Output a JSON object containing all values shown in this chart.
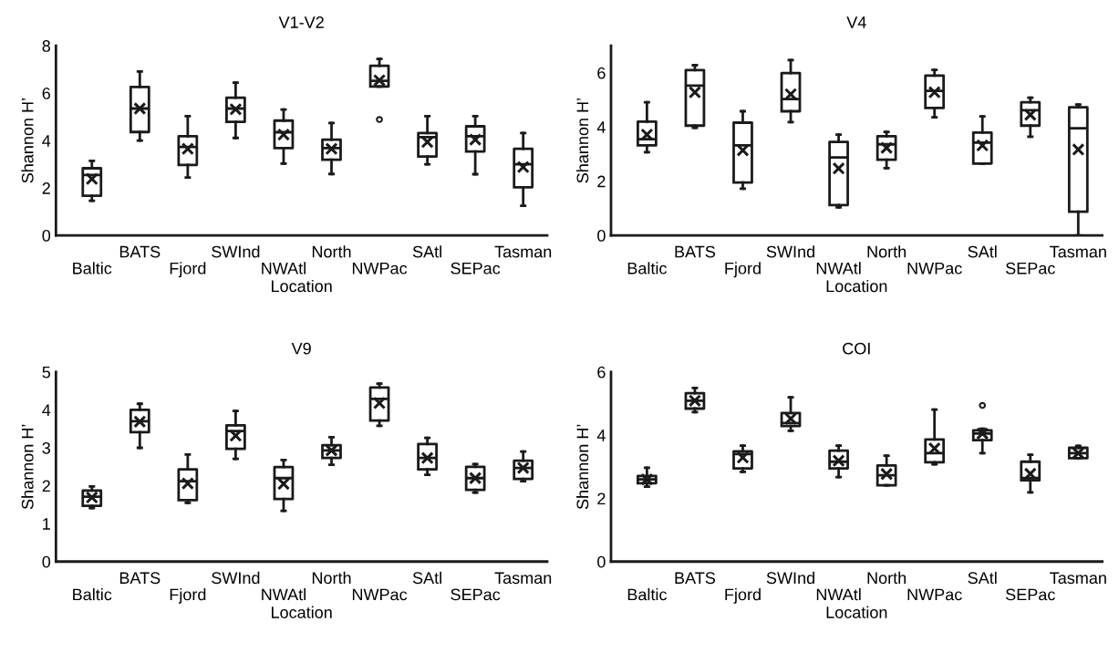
{
  "chart_data": [
    {
      "type": "box",
      "title": "V1-V2",
      "xlabel": "Location",
      "ylabel": "Shannon H’",
      "categories": [
        "Baltic",
        "BATS",
        "Fjord",
        "SWInd",
        "NWAtl",
        "North",
        "NWPac",
        "SAtl",
        "SEPac",
        "Tasman"
      ],
      "ylim": [
        0,
        8
      ],
      "yticks": [
        0,
        2,
        4,
        6,
        8
      ],
      "boxes": [
        {
          "low": 1.46,
          "q1": 1.67,
          "median": 2.55,
          "q3": 2.83,
          "high": 3.14,
          "mean": 2.38
        },
        {
          "low": 4.0,
          "q1": 4.36,
          "median": 5.35,
          "q3": 6.26,
          "high": 6.91,
          "mean": 5.35
        },
        {
          "low": 2.44,
          "q1": 2.97,
          "median": 3.73,
          "q3": 4.18,
          "high": 5.03,
          "mean": 3.65
        },
        {
          "low": 4.11,
          "q1": 4.79,
          "median": 5.35,
          "q3": 5.81,
          "high": 6.44,
          "mean": 5.32
        },
        {
          "low": 3.03,
          "q1": 3.68,
          "median": 4.35,
          "q3": 4.84,
          "high": 5.31,
          "mean": 4.25
        },
        {
          "low": 2.59,
          "q1": 3.19,
          "median": 3.68,
          "q3": 4.04,
          "high": 4.74,
          "mean": 3.65
        },
        {
          "low": 6.28,
          "q1": 6.28,
          "median": 6.52,
          "q3": 7.15,
          "high": 7.44,
          "mean": 6.54,
          "outliers": [
            4.89
          ]
        },
        {
          "low": 3.0,
          "q1": 3.33,
          "median": 4.14,
          "q3": 4.32,
          "high": 5.03,
          "mean": 3.94
        },
        {
          "low": 2.58,
          "q1": 3.54,
          "median": 4.18,
          "q3": 4.6,
          "high": 5.03,
          "mean": 4.04
        },
        {
          "low": 1.25,
          "q1": 2.03,
          "median": 3.0,
          "q3": 3.65,
          "high": 4.32,
          "mean": 2.88
        }
      ]
    },
    {
      "type": "box",
      "title": "V4",
      "xlabel": "Location",
      "ylabel": "Shannon H’",
      "categories": [
        "Baltic",
        "BATS",
        "Fjord",
        "SWInd",
        "NWAtl",
        "North",
        "NWPac",
        "SAtl",
        "SEPac",
        "Tasman"
      ],
      "ylim": [
        0,
        7
      ],
      "yticks": [
        0,
        2,
        4,
        6
      ],
      "boxes": [
        {
          "low": 3.07,
          "q1": 3.32,
          "median": 3.55,
          "q3": 4.2,
          "high": 4.91,
          "mean": 3.72
        },
        {
          "low": 3.97,
          "q1": 4.05,
          "median": 5.53,
          "q3": 6.1,
          "high": 6.28,
          "mean": 5.28
        },
        {
          "low": 1.72,
          "q1": 1.95,
          "median": 3.32,
          "q3": 4.16,
          "high": 4.58,
          "mean": 3.14
        },
        {
          "low": 4.18,
          "q1": 4.58,
          "median": 5.03,
          "q3": 5.99,
          "high": 6.47,
          "mean": 5.21
        },
        {
          "low": 1.03,
          "q1": 1.12,
          "median": 2.88,
          "q3": 3.45,
          "high": 3.72,
          "mean": 2.47
        },
        {
          "low": 2.48,
          "q1": 2.79,
          "median": 3.36,
          "q3": 3.66,
          "high": 3.82,
          "mean": 3.23
        },
        {
          "low": 4.36,
          "q1": 4.7,
          "median": 5.33,
          "q3": 5.9,
          "high": 6.11,
          "mean": 5.28
        },
        {
          "low": 2.65,
          "q1": 2.65,
          "median": 3.42,
          "q3": 3.79,
          "high": 4.39,
          "mean": 3.32
        },
        {
          "low": 3.64,
          "q1": 4.05,
          "median": 4.62,
          "q3": 4.91,
          "high": 5.08,
          "mean": 4.45
        },
        {
          "low": 0,
          "q1": 0.87,
          "median": 3.95,
          "q3": 4.73,
          "high": 4.83,
          "mean": 3.17
        }
      ]
    },
    {
      "type": "box",
      "title": "V9",
      "xlabel": "Location",
      "ylabel": "Shannon H’",
      "categories": [
        "Baltic",
        "BATS",
        "Fjord",
        "SWInd",
        "NWAtl",
        "North",
        "NWPac",
        "SAtl",
        "SEPac",
        "Tasman"
      ],
      "ylim": [
        0,
        5
      ],
      "yticks": [
        0,
        1,
        2,
        3,
        4,
        5
      ],
      "boxes": [
        {
          "low": 1.41,
          "q1": 1.47,
          "median": 1.71,
          "q3": 1.87,
          "high": 1.98,
          "mean": 1.69
        },
        {
          "low": 3.0,
          "q1": 3.41,
          "median": 3.7,
          "q3": 4.0,
          "high": 4.16,
          "mean": 3.69
        },
        {
          "low": 1.55,
          "q1": 1.62,
          "median": 2.12,
          "q3": 2.43,
          "high": 2.82,
          "mean": 2.06
        },
        {
          "low": 2.71,
          "q1": 2.97,
          "median": 3.44,
          "q3": 3.59,
          "high": 3.97,
          "mean": 3.32
        },
        {
          "low": 1.34,
          "q1": 1.65,
          "median": 2.2,
          "q3": 2.49,
          "high": 2.68,
          "mean": 2.05
        },
        {
          "low": 2.55,
          "q1": 2.73,
          "median": 2.93,
          "q3": 3.07,
          "high": 3.28,
          "mean": 2.93
        },
        {
          "low": 3.58,
          "q1": 3.72,
          "median": 4.29,
          "q3": 4.59,
          "high": 4.69,
          "mean": 4.18
        },
        {
          "low": 2.29,
          "q1": 2.43,
          "median": 2.73,
          "q3": 3.1,
          "high": 3.26,
          "mean": 2.73
        },
        {
          "low": 1.82,
          "q1": 1.89,
          "median": 2.2,
          "q3": 2.5,
          "high": 2.57,
          "mean": 2.2
        },
        {
          "low": 2.12,
          "q1": 2.18,
          "median": 2.47,
          "q3": 2.66,
          "high": 2.9,
          "mean": 2.47
        }
      ]
    },
    {
      "type": "box",
      "title": "COI",
      "xlabel": "Location",
      "ylabel": "Shannon H’",
      "categories": [
        "Baltic",
        "BATS",
        "Fjord",
        "SWInd",
        "NWAtl",
        "North",
        "NWPac",
        "SAtl",
        "SEPac",
        "Tasman"
      ],
      "ylim": [
        0,
        6
      ],
      "yticks": [
        0,
        2,
        4,
        6
      ],
      "boxes": [
        {
          "low": 2.37,
          "q1": 2.48,
          "median": 2.6,
          "q3": 2.71,
          "high": 2.97,
          "mean": 2.6
        },
        {
          "low": 4.73,
          "q1": 4.84,
          "median": 5.09,
          "q3": 5.33,
          "high": 5.49,
          "mean": 5.09
        },
        {
          "low": 2.84,
          "q1": 2.95,
          "median": 3.4,
          "q3": 3.49,
          "high": 3.67,
          "mean": 3.29
        },
        {
          "low": 4.14,
          "q1": 4.29,
          "median": 4.38,
          "q3": 4.7,
          "high": 5.2,
          "mean": 4.52
        },
        {
          "low": 2.67,
          "q1": 2.95,
          "median": 3.16,
          "q3": 3.51,
          "high": 3.67,
          "mean": 3.19
        },
        {
          "low": 2.41,
          "q1": 2.41,
          "median": 2.73,
          "q3": 3.04,
          "high": 3.35,
          "mean": 2.77
        },
        {
          "low": 3.08,
          "q1": 3.14,
          "median": 3.43,
          "q3": 3.86,
          "high": 4.81,
          "mean": 3.58
        },
        {
          "low": 3.43,
          "q1": 3.84,
          "median": 4.05,
          "q3": 4.15,
          "high": 4.2,
          "mean": 4.05,
          "outliers": [
            4.94
          ]
        },
        {
          "low": 2.19,
          "q1": 2.57,
          "median": 2.64,
          "q3": 3.16,
          "high": 3.38,
          "mean": 2.78
        },
        {
          "low": 3.27,
          "q1": 3.27,
          "median": 3.43,
          "q3": 3.6,
          "high": 3.66,
          "mean": 3.43
        }
      ]
    }
  ]
}
